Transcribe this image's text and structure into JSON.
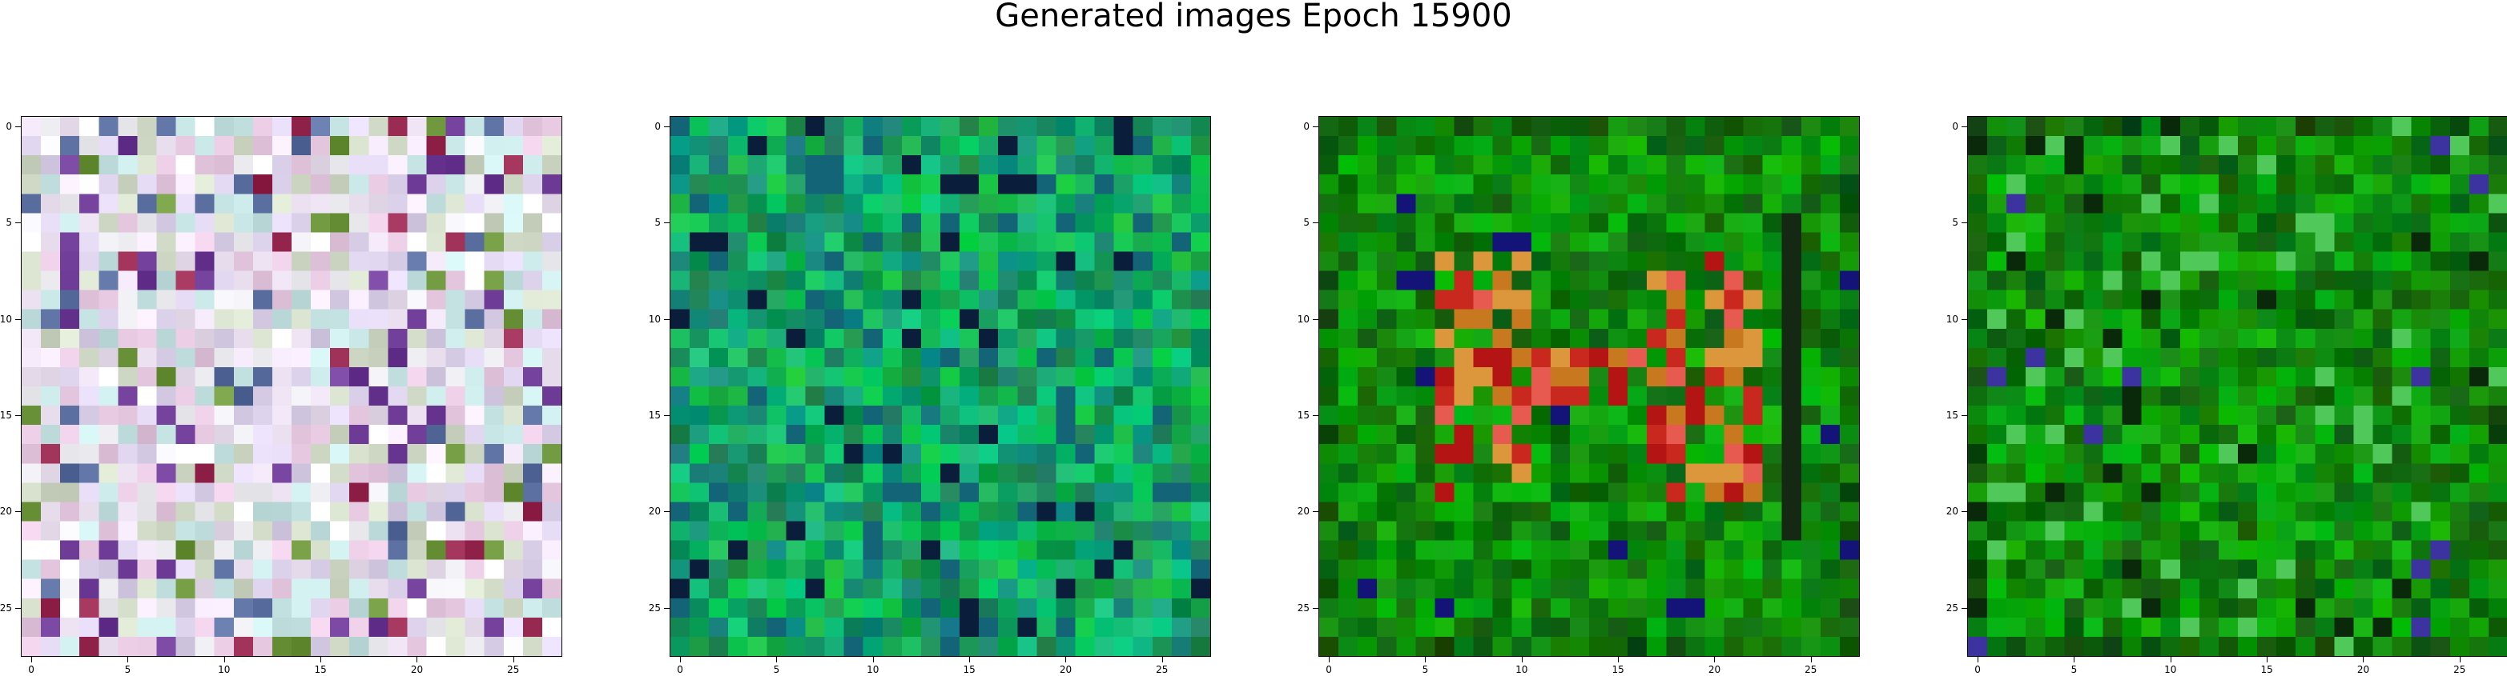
{
  "figure": {
    "title": "Generated images Epoch 15900",
    "images": [
      {
        "palette": "pastel"
      },
      {
        "palette": "teal-green"
      },
      {
        "palette": "green-red-pattern"
      },
      {
        "palette": "green-pattern"
      }
    ],
    "axis": {
      "x_ticks": [
        "0",
        "5",
        "10",
        "15",
        "20",
        "25"
      ],
      "y_ticks": [
        "0",
        "5",
        "10",
        "15",
        "20",
        "25"
      ],
      "grid": false
    }
  }
}
